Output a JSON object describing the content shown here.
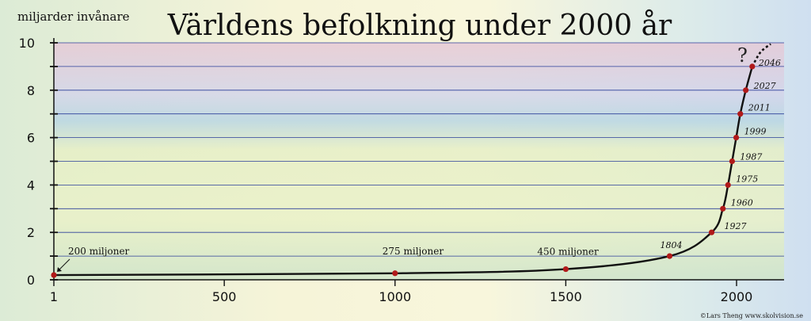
{
  "chart_data": {
    "type": "line",
    "title": "Världens befolkning under 2000 år",
    "ylabel": "miljarder invånare",
    "xlabel": "",
    "xlim": [
      1,
      2130
    ],
    "ylim": [
      0,
      10
    ],
    "x_ticks": [
      1,
      500,
      1000,
      1500,
      2000
    ],
    "y_ticks": [
      0,
      2,
      4,
      6,
      8,
      10
    ],
    "grid": true,
    "series": [
      {
        "values_known": [
          {
            "x": 1,
            "y": 0.2
          },
          {
            "x": 1000,
            "y": 0.275
          },
          {
            "x": 1500,
            "y": 0.45
          },
          {
            "x": 1804,
            "y": 1
          },
          {
            "x": 1927,
            "y": 2
          },
          {
            "x": 1960,
            "y": 3
          },
          {
            "x": 1975,
            "y": 4
          },
          {
            "x": 1987,
            "y": 5
          },
          {
            "x": 1999,
            "y": 6
          },
          {
            "x": 2011,
            "y": 7
          },
          {
            "x": 2027,
            "y": 8
          },
          {
            "x": 2046,
            "y": 9
          }
        ],
        "projection": [
          {
            "x": 2046,
            "y": 9
          },
          {
            "x": 2070,
            "y": 9.6
          },
          {
            "x": 2100,
            "y": 9.95
          }
        ]
      }
    ],
    "point_labels": [
      {
        "x": 1,
        "y": 0.2,
        "text": "200 miljoner"
      },
      {
        "x": 1000,
        "y": 0.275,
        "text": "275 miljoner"
      },
      {
        "x": 1500,
        "y": 0.45,
        "text": "450 miljoner"
      },
      {
        "x": 1804,
        "y": 1,
        "text": "1804"
      },
      {
        "x": 1927,
        "y": 2,
        "text": "1927"
      },
      {
        "x": 1960,
        "y": 3,
        "text": "1960"
      },
      {
        "x": 1975,
        "y": 4,
        "text": "1975"
      },
      {
        "x": 1987,
        "y": 5,
        "text": "1987"
      },
      {
        "x": 1999,
        "y": 6,
        "text": "1999"
      },
      {
        "x": 2011,
        "y": 7,
        "text": "2011"
      },
      {
        "x": 2027,
        "y": 8,
        "text": "2027"
      },
      {
        "x": 2046,
        "y": 9,
        "text": "2046"
      }
    ],
    "question_mark": "?",
    "credit": "©Lars Theng     www.skolvision.se",
    "colors": {
      "line": "#111111",
      "point": "#b11a1a",
      "grid": "#2b3f9a",
      "axis": "#111111"
    }
  }
}
